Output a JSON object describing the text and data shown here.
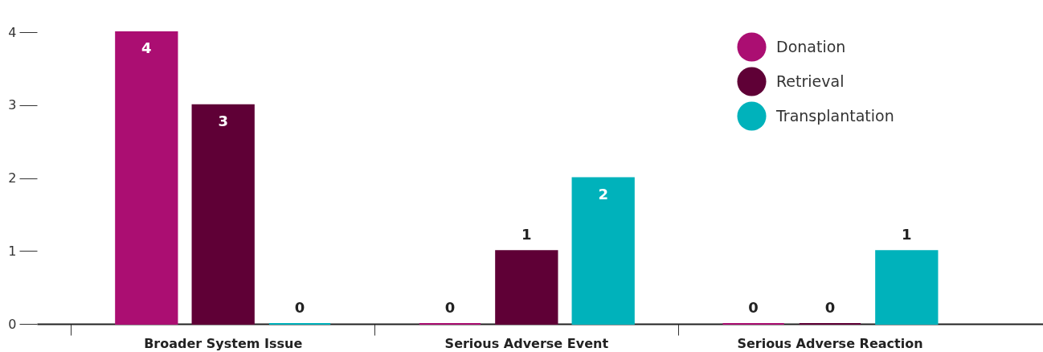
{
  "chart_data": {
    "type": "bar",
    "categories": [
      "Broader System Issue",
      "Serious Adverse Event",
      "Serious Adverse Reaction"
    ],
    "series": [
      {
        "name": "Donation",
        "color": "#ab0e72",
        "values": [
          4,
          0,
          0
        ]
      },
      {
        "name": "Retrieval",
        "color": "#5f0036",
        "values": [
          3,
          1,
          0
        ]
      },
      {
        "name": "Transplantation",
        "color": "#00b2bb",
        "values": [
          0,
          2,
          1
        ]
      }
    ],
    "ylim": [
      0,
      4
    ],
    "yticks": [
      0,
      1,
      2,
      3,
      4
    ],
    "grid": false,
    "legend": "top right",
    "data_labels": true
  }
}
